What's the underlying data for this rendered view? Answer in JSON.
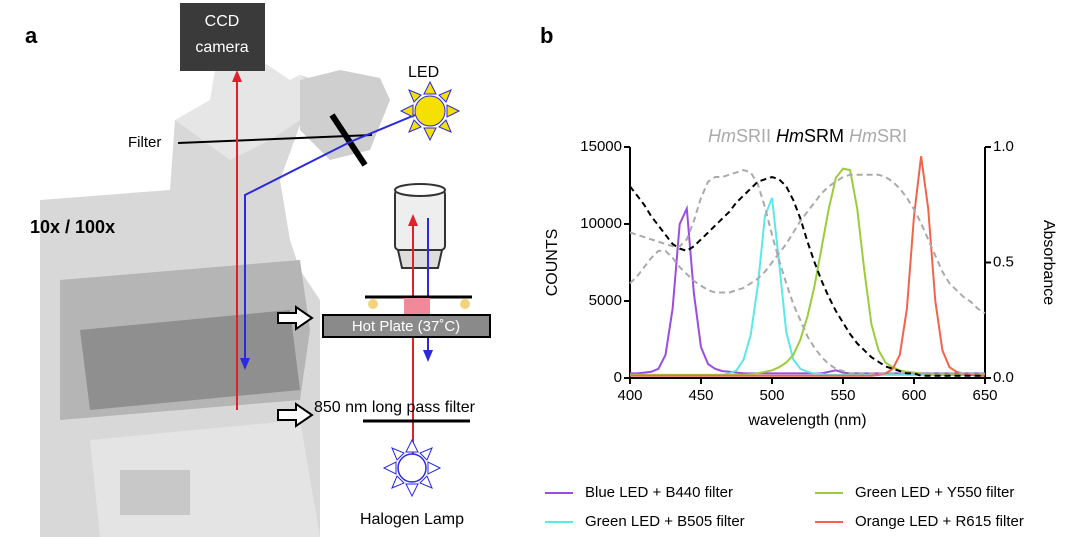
{
  "panel_a": {
    "label": "a",
    "ccd_camera": [
      "CCD",
      "camera"
    ],
    "led": "LED",
    "filter": "Filter",
    "magnification": "10x / 100x",
    "hot_plate": "Hot Plate (37˚C)",
    "long_pass_filter": "850 nm long pass filter",
    "halogen_lamp": "Halogen Lamp"
  },
  "chart_data": {
    "type": "line",
    "panel_label": "b",
    "xlabel": "wavelength (nm)",
    "ylabel": "COUNTS",
    "y2label": "Absorbance",
    "x": [
      400,
      405,
      410,
      415,
      420,
      425,
      430,
      435,
      440,
      445,
      450,
      455,
      460,
      465,
      470,
      475,
      480,
      485,
      490,
      495,
      500,
      505,
      510,
      515,
      520,
      525,
      530,
      535,
      540,
      545,
      550,
      555,
      560,
      565,
      570,
      575,
      580,
      585,
      590,
      595,
      600,
      605,
      610,
      615,
      620,
      625,
      630,
      635,
      640,
      645,
      650
    ],
    "xlim": [
      400,
      650
    ],
    "xticks": [
      400,
      450,
      500,
      550,
      600,
      650
    ],
    "ylim": [
      0,
      15000
    ],
    "yticks": [
      0,
      5000,
      10000,
      15000
    ],
    "y2lim": [
      0,
      1
    ],
    "y2ticks": [
      {
        "value": 0,
        "label": "0.0"
      },
      {
        "value": 0.5,
        "label": "0.5"
      },
      {
        "value": 1,
        "label": "1.0"
      }
    ],
    "series": [
      {
        "name": "Blue LED + B440 filter",
        "color": "#9b4de0",
        "values": [
          300,
          300,
          350,
          400,
          600,
          1500,
          4500,
          10000,
          11000,
          5500,
          2000,
          900,
          600,
          450,
          400,
          350,
          300,
          300,
          300,
          300,
          300,
          300,
          300,
          300,
          300,
          300,
          300,
          300,
          400,
          500,
          350,
          300,
          300,
          300,
          300,
          300,
          300,
          300,
          300,
          300,
          300,
          300,
          300,
          300,
          300,
          300,
          300,
          300,
          300,
          300,
          300
        ]
      },
      {
        "name": "Green LED + B505 filter",
        "color": "#5ce8e8",
        "values": [
          200,
          200,
          200,
          200,
          200,
          200,
          200,
          200,
          200,
          200,
          200,
          200,
          200,
          200,
          300,
          500,
          1200,
          2800,
          6000,
          10500,
          11700,
          7500,
          3000,
          1200,
          600,
          400,
          300,
          250,
          200,
          200,
          200,
          200,
          200,
          200,
          200,
          200,
          200,
          200,
          200,
          200,
          200,
          200,
          200,
          200,
          200,
          200,
          200,
          200,
          200,
          200,
          200
        ]
      },
      {
        "name": "Green LED + Y550 filter",
        "color": "#9ccc3c",
        "values": [
          200,
          200,
          200,
          200,
          200,
          200,
          200,
          200,
          200,
          200,
          200,
          200,
          200,
          200,
          200,
          200,
          200,
          250,
          300,
          400,
          500,
          700,
          1000,
          1500,
          2500,
          4000,
          6000,
          8500,
          11000,
          13000,
          13600,
          13500,
          11000,
          7000,
          3500,
          1800,
          1000,
          700,
          500,
          400,
          350,
          300,
          250,
          200,
          200,
          200,
          200,
          200,
          200,
          200,
          200
        ]
      },
      {
        "name": "Orange LED + R615 filter",
        "color": "#f2644a",
        "values": [
          150,
          150,
          150,
          150,
          150,
          150,
          150,
          150,
          150,
          150,
          150,
          150,
          150,
          150,
          150,
          150,
          150,
          150,
          150,
          150,
          150,
          150,
          150,
          150,
          150,
          150,
          150,
          150,
          150,
          150,
          150,
          150,
          150,
          150,
          150,
          200,
          300,
          600,
          1500,
          4500,
          10500,
          14400,
          11000,
          5000,
          1800,
          700,
          400,
          250,
          200,
          150,
          150
        ]
      },
      {
        "name": "HmSRII",
        "color": "#aaaaaa",
        "axis": "y2",
        "linestyle": "dashed",
        "values": [
          0.63,
          0.62,
          0.61,
          0.6,
          0.59,
          0.58,
          0.57,
          0.57,
          0.6,
          0.68,
          0.78,
          0.85,
          0.87,
          0.87,
          0.88,
          0.89,
          0.9,
          0.89,
          0.84,
          0.74,
          0.62,
          0.51,
          0.41,
          0.32,
          0.25,
          0.18,
          0.13,
          0.09,
          0.06,
          0.04,
          0.03,
          0.02,
          0.02,
          0.02,
          0.02,
          0.02,
          0.02,
          0.02,
          0.02,
          0.02,
          0.02,
          0.02,
          0.02,
          0.02,
          0.02,
          0.02,
          0.02,
          0.02,
          0.02,
          0.02,
          0.02
        ]
      },
      {
        "name": "HmSRM",
        "color": "#000000",
        "axis": "y2",
        "linestyle": "dashed",
        "values": [
          0.83,
          0.79,
          0.75,
          0.7,
          0.66,
          0.62,
          0.58,
          0.56,
          0.55,
          0.57,
          0.6,
          0.63,
          0.66,
          0.69,
          0.72,
          0.76,
          0.79,
          0.82,
          0.85,
          0.86,
          0.87,
          0.86,
          0.83,
          0.77,
          0.69,
          0.59,
          0.5,
          0.42,
          0.35,
          0.29,
          0.24,
          0.19,
          0.15,
          0.12,
          0.09,
          0.07,
          0.05,
          0.04,
          0.03,
          0.02,
          0.02,
          0.01,
          0.01,
          0.01,
          0.01,
          0.01,
          0.01,
          0.01,
          0.01,
          0.01,
          0.01
        ]
      },
      {
        "name": "HmSRI",
        "color": "#aaaaaa",
        "axis": "y2",
        "linestyle": "dashed",
        "values": [
          0.41,
          0.44,
          0.48,
          0.52,
          0.55,
          0.55,
          0.52,
          0.48,
          0.45,
          0.42,
          0.4,
          0.38,
          0.37,
          0.37,
          0.37,
          0.38,
          0.39,
          0.41,
          0.43,
          0.46,
          0.5,
          0.54,
          0.58,
          0.63,
          0.68,
          0.72,
          0.76,
          0.8,
          0.83,
          0.85,
          0.87,
          0.88,
          0.88,
          0.88,
          0.88,
          0.88,
          0.87,
          0.85,
          0.82,
          0.78,
          0.73,
          0.67,
          0.6,
          0.53,
          0.46,
          0.41,
          0.38,
          0.35,
          0.33,
          0.3,
          0.28
        ]
      }
    ]
  }
}
